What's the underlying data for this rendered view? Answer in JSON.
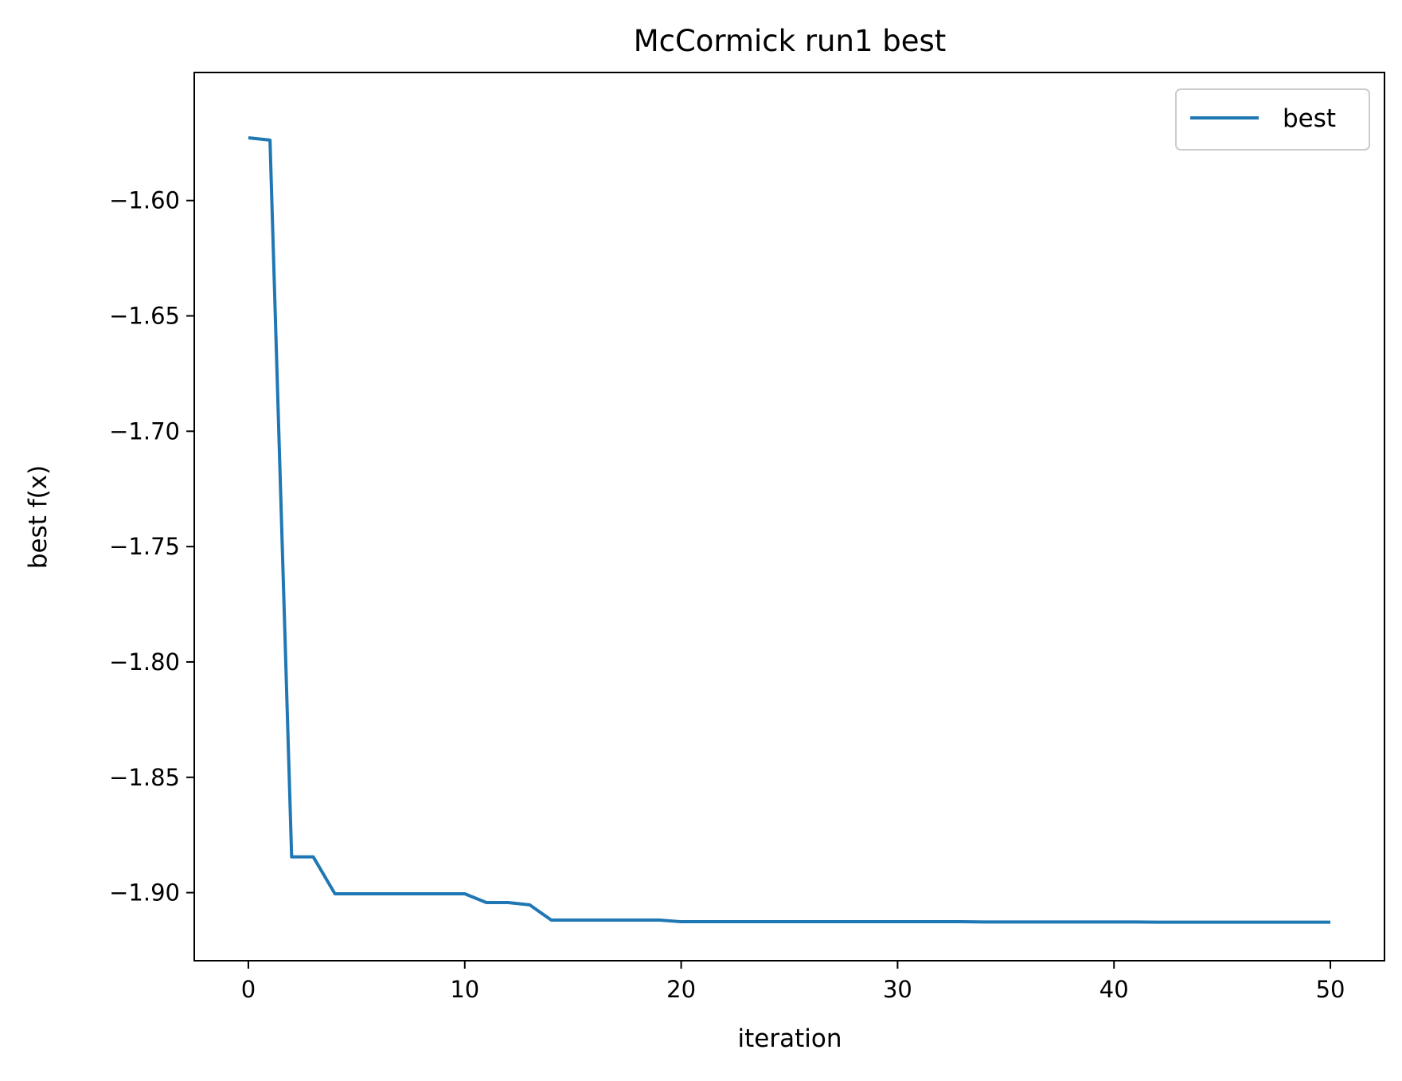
{
  "chart_data": {
    "type": "line",
    "title": "McCormick run1 best",
    "xlabel": "iteration",
    "ylabel": "best f(x)",
    "xlim": [
      -2.5,
      52.5
    ],
    "ylim": [
      -1.9295,
      -1.5445
    ],
    "xticks": [
      0,
      10,
      20,
      30,
      40,
      50
    ],
    "xtick_labels": [
      "0",
      "10",
      "20",
      "30",
      "40",
      "50"
    ],
    "yticks": [
      -1.6,
      -1.65,
      -1.7,
      -1.75,
      -1.8,
      -1.85,
      -1.9
    ],
    "ytick_labels": [
      "−1.60",
      "−1.65",
      "−1.70",
      "−1.75",
      "−1.80",
      "−1.85",
      "−1.90"
    ],
    "grid": false,
    "legend_position": "upper right",
    "colors": {
      "series": "#1f77b4",
      "axes": "#000000",
      "legend_border": "#cccccc"
    },
    "x": [
      0,
      1,
      2,
      3,
      4,
      5,
      6,
      7,
      8,
      9,
      10,
      11,
      12,
      13,
      14,
      15,
      16,
      17,
      18,
      19,
      20,
      21,
      22,
      23,
      24,
      25,
      26,
      27,
      28,
      29,
      30,
      31,
      32,
      33,
      34,
      35,
      36,
      37,
      38,
      39,
      40,
      41,
      42,
      43,
      44,
      45,
      46,
      47,
      48,
      49,
      50
    ],
    "series": [
      {
        "name": "best",
        "values": [
          -1.5728,
          -1.5738,
          -1.8845,
          -1.8845,
          -1.9005,
          -1.9005,
          -1.9005,
          -1.9005,
          -1.9005,
          -1.9005,
          -1.9005,
          -1.9043,
          -1.9043,
          -1.9053,
          -1.9119,
          -1.9119,
          -1.9119,
          -1.9119,
          -1.9119,
          -1.9119,
          -1.9126,
          -1.9126,
          -1.9126,
          -1.9126,
          -1.9126,
          -1.9126,
          -1.9126,
          -1.9126,
          -1.9126,
          -1.9126,
          -1.9126,
          -1.9126,
          -1.9126,
          -1.9126,
          -1.9127,
          -1.9127,
          -1.9127,
          -1.9127,
          -1.9127,
          -1.9127,
          -1.9127,
          -1.9127,
          -1.9128,
          -1.9128,
          -1.9128,
          -1.9128,
          -1.9128,
          -1.9128,
          -1.9128,
          -1.9128,
          -1.9128
        ]
      }
    ]
  }
}
